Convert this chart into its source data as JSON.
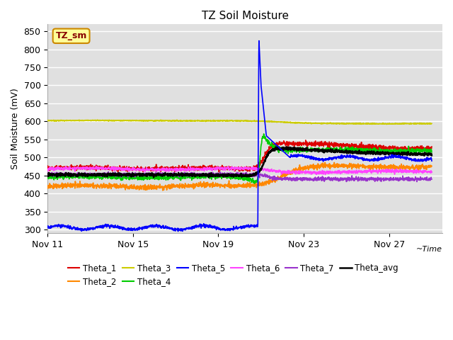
{
  "title": "TZ Soil Moisture",
  "xlabel": "~Time",
  "ylabel": "Soil Moisture (mV)",
  "ylim": [
    290,
    870
  ],
  "yticks": [
    300,
    350,
    400,
    450,
    500,
    550,
    600,
    650,
    700,
    750,
    800,
    850
  ],
  "xlim": [
    11,
    29.5
  ],
  "xtick_vals": [
    11,
    15,
    19,
    23,
    27
  ],
  "xtick_labels": [
    "Nov 11",
    "Nov 15",
    "Nov 19",
    "Nov 23",
    "Nov 27"
  ],
  "spike_xday": 20.85,
  "colors": {
    "Theta_1": "#dd0000",
    "Theta_2": "#ff8800",
    "Theta_3": "#cccc00",
    "Theta_4": "#00cc00",
    "Theta_5": "#0000ff",
    "Theta_6": "#ff44ff",
    "Theta_7": "#9933cc",
    "Theta_avg": "#000000"
  },
  "plot_bg_color": "#e0e0e0",
  "grid_color": "#ffffff",
  "label_box_facecolor": "#ffff99",
  "label_box_edgecolor": "#cc8800",
  "label_text_color": "#880000",
  "label_text": "TZ_sm"
}
